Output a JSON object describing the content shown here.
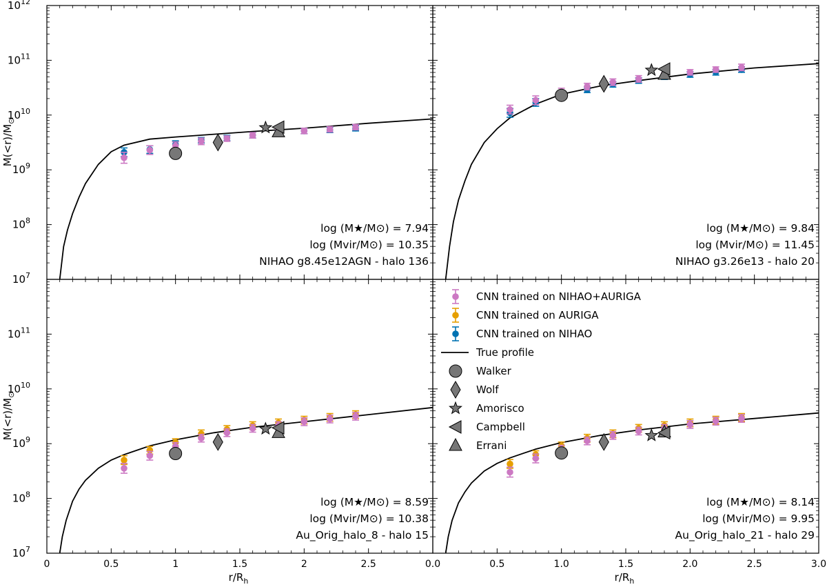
{
  "figure": {
    "ylabel": "M(<r)/M",
    "ylabel_sub": "⊙",
    "xlabel": "r/R",
    "xlabel_sub": "h"
  },
  "colors": {
    "nihao_auriga": "#cc79c3",
    "auriga": "#e69f00",
    "nihao": "#0072b2",
    "marker_fill": "#777777",
    "profile": "#000000"
  },
  "legend": {
    "entries": [
      {
        "label": "CNN trained on NIHAO+AURIGA",
        "kind": "errorbar",
        "color_key": "nihao_auriga"
      },
      {
        "label": "CNN trained on AURIGA",
        "kind": "errorbar",
        "color_key": "auriga"
      },
      {
        "label": "CNN trained on NIHAO",
        "kind": "errorbar",
        "color_key": "nihao"
      },
      {
        "label": "True profile",
        "kind": "line"
      },
      {
        "label": "Walker",
        "kind": "circle"
      },
      {
        "label": "Wolf",
        "kind": "diamond"
      },
      {
        "label": "Amorisco",
        "kind": "star"
      },
      {
        "label": "Campbell",
        "kind": "triangle-left"
      },
      {
        "label": "Errani",
        "kind": "triangle-up"
      }
    ]
  },
  "chart_data": [
    {
      "type": "scatter",
      "panel": "top-left",
      "xlim": [
        0,
        3.0
      ],
      "ylim_log10": [
        7,
        12
      ],
      "xticks": [
        "0",
        "0.5",
        "1",
        "1.5",
        "2",
        "2.5"
      ],
      "yticks_exp": [
        "7",
        "8",
        "9",
        "10",
        "11",
        "12"
      ],
      "show_xticklabels": false,
      "show_yticklabels": true,
      "annotation": [
        "log (M★/M⊙) = 7.94",
        "log (Mvir/M⊙) = 10.35",
        "NIHAO g8.45e12AGN - halo 136"
      ],
      "true_profile": {
        "x": [
          0.1,
          0.13,
          0.16,
          0.2,
          0.25,
          0.3,
          0.4,
          0.5,
          0.6,
          0.8,
          1.0,
          1.3,
          1.6,
          2.0,
          2.5,
          3.0
        ],
        "log10M": [
          7.0,
          7.6,
          7.9,
          8.2,
          8.5,
          8.75,
          9.1,
          9.33,
          9.45,
          9.56,
          9.6,
          9.65,
          9.7,
          9.76,
          9.85,
          9.93
        ]
      },
      "series": [
        {
          "name": "CNN trained on NIHAO",
          "x": [
            0.6,
            0.8,
            1.0,
            1.2,
            1.4,
            1.6,
            1.8,
            2.0,
            2.2,
            2.4
          ],
          "log10M": [
            9.32,
            9.37,
            9.46,
            9.54,
            9.58,
            9.63,
            9.68,
            9.71,
            9.73,
            9.76
          ],
          "err_lo": [
            0.08,
            0.07,
            0.07,
            0.05,
            0.05,
            0.05,
            0.04,
            0.05,
            0.05,
            0.05
          ],
          "err_hi": [
            0.08,
            0.07,
            0.07,
            0.05,
            0.05,
            0.05,
            0.04,
            0.05,
            0.05,
            0.05
          ]
        },
        {
          "name": "CNN trained on NIHAO+AURIGA",
          "x": [
            0.6,
            0.8,
            1.0,
            1.2,
            1.4,
            1.6,
            1.8,
            2.0,
            2.2,
            2.4
          ],
          "log10M": [
            9.22,
            9.36,
            9.44,
            9.52,
            9.57,
            9.63,
            9.68,
            9.71,
            9.74,
            9.78
          ],
          "err_lo": [
            0.1,
            0.08,
            0.07,
            0.06,
            0.05,
            0.05,
            0.05,
            0.05,
            0.05,
            0.05
          ],
          "err_hi": [
            0.1,
            0.08,
            0.07,
            0.06,
            0.05,
            0.05,
            0.05,
            0.05,
            0.05,
            0.05
          ]
        }
      ],
      "markers": {
        "walker": [
          1.0,
          9.3
        ],
        "wolf": [
          1.33,
          9.5
        ],
        "amorisco": [
          1.7,
          9.77
        ],
        "campbell": [
          1.8,
          9.78
        ],
        "errani": [
          1.8,
          9.69
        ]
      }
    },
    {
      "type": "scatter",
      "panel": "top-right",
      "xlim": [
        0,
        3.0
      ],
      "ylim_log10": [
        7,
        12
      ],
      "xticks": [
        "0",
        "0.5",
        "1.0",
        "1.5",
        "2.0",
        "2.5",
        "3.0"
      ],
      "yticks_exp": [
        "7",
        "8",
        "9",
        "10",
        "11",
        "12"
      ],
      "show_xticklabels": false,
      "show_yticklabels": false,
      "annotation": [
        "log (M★/M⊙) = 9.84",
        "log (Mvir/M⊙) = 11.45",
        "NIHAO g3.26e13 - halo 20"
      ],
      "true_profile": {
        "x": [
          0.1,
          0.13,
          0.16,
          0.2,
          0.25,
          0.3,
          0.4,
          0.5,
          0.6,
          0.8,
          1.0,
          1.3,
          1.6,
          2.0,
          2.5,
          3.0
        ],
        "log10M": [
          7.0,
          7.6,
          8.05,
          8.45,
          8.8,
          9.1,
          9.5,
          9.75,
          9.95,
          10.2,
          10.38,
          10.53,
          10.63,
          10.75,
          10.86,
          10.94
        ]
      },
      "series": [
        {
          "name": "CNN trained on NIHAO",
          "x": [
            0.6,
            0.8,
            1.0,
            1.2,
            1.4,
            1.6,
            1.8,
            2.0,
            2.2,
            2.4
          ],
          "log10M": [
            10.04,
            10.23,
            10.36,
            10.46,
            10.56,
            10.63,
            10.7,
            10.74,
            10.78,
            10.83
          ],
          "err_lo": [
            0.08,
            0.07,
            0.06,
            0.05,
            0.05,
            0.05,
            0.05,
            0.05,
            0.05,
            0.05
          ],
          "err_hi": [
            0.08,
            0.07,
            0.06,
            0.05,
            0.05,
            0.05,
            0.05,
            0.05,
            0.05,
            0.05
          ]
        },
        {
          "name": "CNN trained on NIHAO+AURIGA",
          "x": [
            0.6,
            0.8,
            1.0,
            1.2,
            1.4,
            1.6,
            1.8,
            2.0,
            2.2,
            2.4
          ],
          "log10M": [
            10.1,
            10.27,
            10.42,
            10.52,
            10.6,
            10.66,
            10.72,
            10.78,
            10.83,
            10.87
          ],
          "err_lo": [
            0.08,
            0.08,
            0.07,
            0.06,
            0.06,
            0.06,
            0.05,
            0.05,
            0.05,
            0.06
          ],
          "err_hi": [
            0.08,
            0.08,
            0.07,
            0.06,
            0.06,
            0.06,
            0.05,
            0.05,
            0.05,
            0.06
          ]
        }
      ],
      "markers": {
        "walker": [
          1.0,
          10.36
        ],
        "wolf": [
          1.33,
          10.57
        ],
        "amorisco": [
          1.7,
          10.82
        ],
        "campbell": [
          1.8,
          10.84
        ],
        "errani": [
          1.8,
          10.74
        ]
      }
    },
    {
      "type": "scatter",
      "panel": "bottom-left",
      "xlim": [
        0,
        3.0
      ],
      "ylim_log10": [
        7,
        12
      ],
      "xticks": [
        "0",
        "0.5",
        "1",
        "1.5",
        "2",
        "2.5"
      ],
      "yticks_exp": [
        "7",
        "8",
        "9",
        "10",
        "11"
      ],
      "show_xticklabels": true,
      "show_yticklabels": true,
      "annotation": [
        "log (M★/M⊙) = 8.59",
        "log (Mvir/M⊙) = 10.38",
        "Au_Orig_halo_8 - halo 15"
      ],
      "true_profile": {
        "x": [
          0.1,
          0.12,
          0.15,
          0.2,
          0.25,
          0.3,
          0.4,
          0.5,
          0.6,
          0.8,
          1.0,
          1.3,
          1.6,
          2.0,
          2.5,
          3.0
        ],
        "log10M": [
          7.0,
          7.3,
          7.6,
          7.95,
          8.17,
          8.33,
          8.55,
          8.7,
          8.8,
          8.96,
          9.07,
          9.2,
          9.3,
          9.4,
          9.53,
          9.66
        ]
      },
      "series": [
        {
          "name": "CNN trained on AURIGA",
          "x": [
            0.6,
            0.8,
            1.0,
            1.2,
            1.4,
            1.6,
            1.8,
            2.0,
            2.2,
            2.4
          ],
          "log10M": [
            8.7,
            8.88,
            9.02,
            9.18,
            9.26,
            9.33,
            9.38,
            9.43,
            9.48,
            9.53
          ],
          "err_lo": [
            0.08,
            0.07,
            0.07,
            0.07,
            0.07,
            0.07,
            0.07,
            0.07,
            0.07,
            0.07
          ],
          "err_hi": [
            0.08,
            0.07,
            0.07,
            0.07,
            0.07,
            0.07,
            0.07,
            0.07,
            0.07,
            0.07
          ]
        },
        {
          "name": "CNN trained on NIHAO+AURIGA",
          "x": [
            0.6,
            0.8,
            1.0,
            1.2,
            1.4,
            1.6,
            1.8,
            2.0,
            2.2,
            2.4
          ],
          "log10M": [
            8.55,
            8.78,
            8.95,
            9.1,
            9.2,
            9.28,
            9.33,
            9.4,
            9.45,
            9.5
          ],
          "err_lo": [
            0.09,
            0.08,
            0.07,
            0.07,
            0.07,
            0.07,
            0.07,
            0.07,
            0.07,
            0.07
          ],
          "err_hi": [
            0.09,
            0.08,
            0.07,
            0.07,
            0.07,
            0.07,
            0.07,
            0.07,
            0.07,
            0.07
          ]
        }
      ],
      "markers": {
        "walker": [
          1.0,
          8.82
        ],
        "wolf": [
          1.33,
          9.03
        ],
        "amorisco": [
          1.7,
          9.27
        ],
        "campbell": [
          1.8,
          9.29
        ],
        "errani": [
          1.8,
          9.2
        ]
      }
    },
    {
      "type": "scatter",
      "panel": "bottom-right",
      "xlim": [
        0,
        3.0
      ],
      "ylim_log10": [
        7,
        12
      ],
      "xticks": [
        "0.0",
        "0.5",
        "1.0",
        "1.5",
        "2.0",
        "2.5",
        "3.0"
      ],
      "yticks_exp": [
        "7",
        "8",
        "9",
        "10",
        "11"
      ],
      "show_xticklabels": true,
      "show_yticklabels": false,
      "annotation": [
        "log (M★/M⊙) = 8.14",
        "log (Mvir/M⊙) = 9.95",
        "Au_Orig_halo_21 - halo 29"
      ],
      "true_profile": {
        "x": [
          0.1,
          0.12,
          0.15,
          0.2,
          0.25,
          0.3,
          0.4,
          0.5,
          0.6,
          0.8,
          1.0,
          1.3,
          1.6,
          2.0,
          2.5,
          3.0
        ],
        "log10M": [
          7.0,
          7.3,
          7.6,
          7.92,
          8.12,
          8.28,
          8.5,
          8.64,
          8.74,
          8.9,
          9.02,
          9.15,
          9.25,
          9.36,
          9.46,
          9.56
        ]
      },
      "series": [
        {
          "name": "CNN trained on AURIGA",
          "x": [
            0.6,
            0.8,
            1.0,
            1.2,
            1.4,
            1.6,
            1.8,
            2.0,
            2.2,
            2.4
          ],
          "log10M": [
            8.63,
            8.8,
            8.96,
            9.1,
            9.18,
            9.28,
            9.33,
            9.38,
            9.43,
            9.48
          ],
          "err_lo": [
            0.08,
            0.07,
            0.07,
            0.07,
            0.07,
            0.07,
            0.07,
            0.07,
            0.07,
            0.07
          ],
          "err_hi": [
            0.08,
            0.07,
            0.07,
            0.07,
            0.07,
            0.07,
            0.07,
            0.07,
            0.07,
            0.07
          ]
        },
        {
          "name": "CNN trained on NIHAO+AURIGA",
          "x": [
            0.6,
            0.8,
            1.0,
            1.2,
            1.4,
            1.6,
            1.8,
            2.0,
            2.2,
            2.4
          ],
          "log10M": [
            8.48,
            8.73,
            8.9,
            9.05,
            9.15,
            9.23,
            9.28,
            9.35,
            9.41,
            9.46
          ],
          "err_lo": [
            0.09,
            0.08,
            0.07,
            0.07,
            0.07,
            0.07,
            0.07,
            0.07,
            0.07,
            0.07
          ],
          "err_hi": [
            0.09,
            0.08,
            0.07,
            0.07,
            0.07,
            0.07,
            0.07,
            0.07,
            0.07,
            0.07
          ]
        }
      ],
      "markers": {
        "walker": [
          1.0,
          8.83
        ],
        "wolf": [
          1.33,
          9.03
        ],
        "amorisco": [
          1.7,
          9.15
        ],
        "campbell": [
          1.8,
          9.2
        ],
        "errani": [
          1.8,
          9.21
        ]
      }
    }
  ]
}
